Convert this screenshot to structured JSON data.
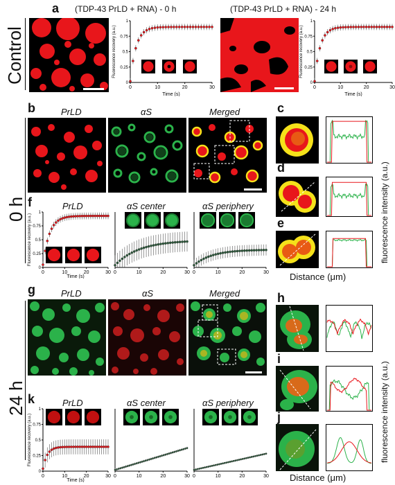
{
  "row_a": {
    "panel_letter": "a",
    "side_label": "Control",
    "title_left": "(TDP-43 PrLD + RNA) - 0 h",
    "title_right": "(TDP-43 PrLD + RNA) - 24 h",
    "ylabel": "Fluorescence recovery (a.u.)",
    "xlabel": "Time (s)",
    "xticks": [
      "0",
      "10",
      "20",
      "30"
    ],
    "yticks": [
      "0",
      "0.25",
      "0.5",
      "0.75",
      "1"
    ]
  },
  "row_0h": {
    "side_label": "0 h",
    "letters": {
      "b": "b",
      "c": "c",
      "d": "d",
      "e": "e",
      "f": "f"
    },
    "headers": [
      "PrLD",
      "αS",
      "Merged"
    ],
    "f_titles": [
      "PrLD",
      "αS center",
      "αS periphery"
    ],
    "f_ylabel": "Fluorescence recovery (a.u.)",
    "f_xlabel": "Time (s)",
    "f_xticks": [
      "0",
      "10",
      "20",
      "30"
    ],
    "f_yticks": [
      "0",
      "0.25",
      "0.5",
      "0.75",
      "1"
    ],
    "distance_label": "Distance (μm)",
    "intensity_label": "fluorescence intensity (a.u.)"
  },
  "row_24h": {
    "side_label": "24 h",
    "letters": {
      "g": "g",
      "h": "h",
      "i": "i",
      "j": "j",
      "k": "k"
    },
    "headers": [
      "PrLD",
      "αS",
      "Merged"
    ],
    "k_titles": [
      "PrLD",
      "αS center",
      "αS periphery"
    ],
    "k_ylabel": "Fluorescence recovery (a.u.)",
    "k_xlabel": "Time (s)",
    "k_xticks": [
      "0",
      "10",
      "20",
      "30"
    ],
    "k_yticks": [
      "0",
      "0.25",
      "0.5",
      "0.75",
      "1"
    ],
    "distance_label": "Distance (μm)",
    "intensity_label": "fluorescence intensity (a.u.)"
  },
  "colors": {
    "red": "#e8161b",
    "green": "#2bb24a",
    "yellow": "#f5e11a",
    "black": "#000000"
  }
}
